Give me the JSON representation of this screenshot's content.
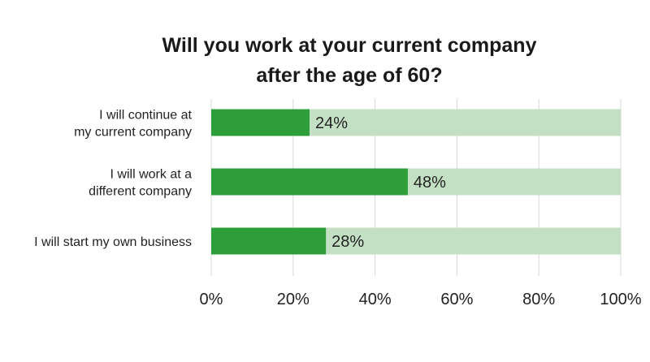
{
  "chart_data": {
    "type": "bar",
    "orientation": "horizontal",
    "stacked_background": true,
    "title_lines": [
      "Will you work at your current company",
      "after the age of 60?"
    ],
    "categories": [
      [
        "I will continue at",
        "my current company"
      ],
      [
        "I will work at a",
        "different company"
      ],
      [
        "I will start my own business"
      ]
    ],
    "values": [
      24,
      48,
      28
    ],
    "value_labels": [
      "24%",
      "48%",
      "28%"
    ],
    "xlim": [
      0,
      100
    ],
    "x_ticks": [
      0,
      20,
      40,
      60,
      80,
      100
    ],
    "x_tick_labels": [
      "0%",
      "20%",
      "40%",
      "60%",
      "80%",
      "100%"
    ],
    "grid": true,
    "colors": {
      "bar": "#2e9e3a",
      "track": "#c4e0c4",
      "grid": "#d9d9d9",
      "text": "#222222"
    }
  }
}
